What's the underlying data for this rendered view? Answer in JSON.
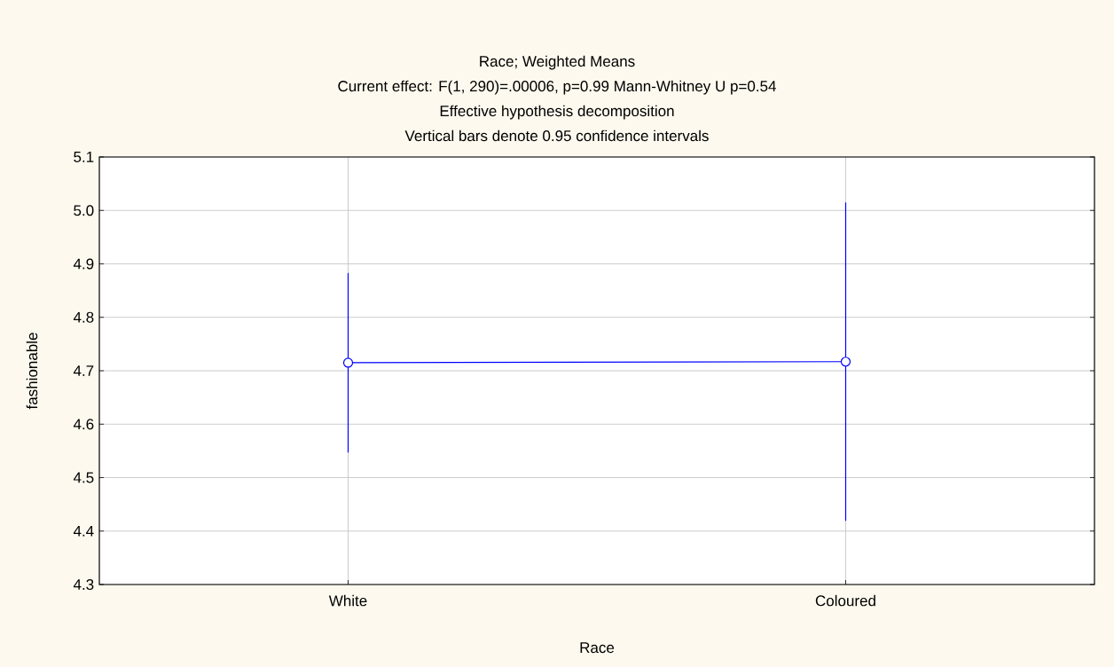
{
  "chart_data": {
    "type": "line",
    "title": "Race; Weighted Means",
    "subtitle": "Current effect: F(1, 290)=.00006, p=0.99 Mann-Whitney U p=0.54",
    "annotations": [
      "Effective hypothesis decomposition",
      "Vertical bars denote 0.95 confidence intervals"
    ],
    "xlabel": "Race",
    "ylabel": "fashionable",
    "categories": [
      "White",
      "Coloured"
    ],
    "series": [
      {
        "color": "#0000ff",
        "values": [
          4.715,
          4.717
        ],
        "errors": [
          0.168,
          0.298
        ]
      }
    ],
    "ylim": [
      4.3,
      5.1
    ],
    "yticks": [
      {
        "value": 4.3,
        "label": "4.3"
      },
      {
        "value": 4.4,
        "label": "4.4"
      },
      {
        "value": 4.5,
        "label": "4.5"
      },
      {
        "value": 4.6,
        "label": "4.6"
      },
      {
        "value": 4.7,
        "label": "4.7"
      },
      {
        "value": 4.8,
        "label": "4.8"
      },
      {
        "value": 4.9,
        "label": "4.9"
      },
      {
        "value": 5.0,
        "label": "5.0"
      },
      {
        "value": 5.1,
        "label": "5.1"
      }
    ],
    "grid": true,
    "marker": "circle",
    "line_style": "solid"
  }
}
